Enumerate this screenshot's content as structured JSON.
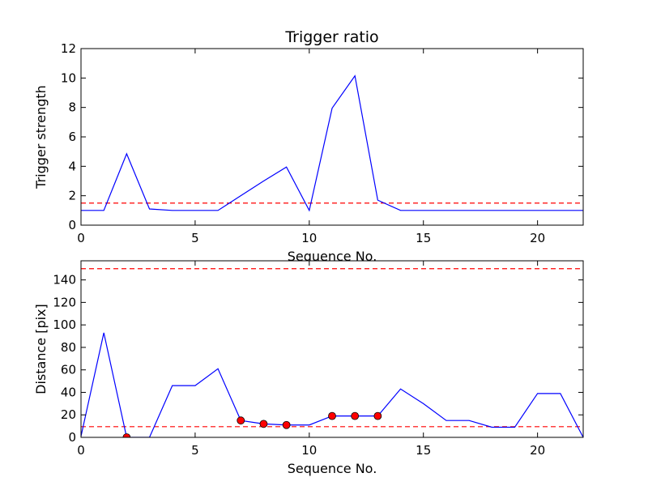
{
  "chart_data": [
    {
      "type": "line",
      "title": "Trigger ratio",
      "xlabel": "Sequence No.",
      "ylabel": "Trigger strength",
      "xlim": [
        0,
        22
      ],
      "ylim": [
        0,
        12
      ],
      "xticks": [
        0,
        5,
        10,
        15,
        20
      ],
      "yticks": [
        0,
        2,
        4,
        6,
        8,
        10,
        12
      ],
      "grid": false,
      "series": [
        {
          "style": "solid",
          "color": "#0000ff",
          "x": [
            0,
            1,
            2,
            3,
            4,
            5,
            6,
            7,
            8,
            9,
            10,
            11,
            12,
            13,
            14,
            15,
            16,
            17,
            18,
            19,
            20,
            21,
            22
          ],
          "y": [
            1.0,
            1.0,
            4.85,
            1.1,
            1.0,
            1.0,
            1.0,
            2.0,
            3.0,
            3.95,
            1.0,
            7.95,
            10.15,
            1.7,
            1.0,
            1.0,
            1.0,
            1.0,
            1.0,
            1.0,
            1.0,
            1.0,
            1.0
          ]
        }
      ],
      "hlines": [
        {
          "y": 1.5,
          "color": "#ff0000",
          "style": "dashed"
        }
      ]
    },
    {
      "type": "line",
      "title": "",
      "xlabel": "Sequence No.",
      "ylabel": "Distance [pix]",
      "xlim": [
        0,
        22
      ],
      "ylim": [
        0,
        157
      ],
      "xticks": [
        0,
        5,
        10,
        15,
        20
      ],
      "yticks": [
        0,
        20,
        40,
        60,
        80,
        100,
        120,
        140
      ],
      "grid": false,
      "series": [
        {
          "style": "solid",
          "color": "#0000ff",
          "x": [
            0,
            1,
            2,
            3,
            4,
            5,
            6,
            7,
            8,
            9,
            10,
            11,
            12,
            13,
            14,
            15,
            16,
            17,
            18,
            19,
            20,
            21,
            22
          ],
          "y": [
            1,
            93,
            0,
            0,
            46,
            46,
            61,
            15,
            12,
            11,
            11,
            19,
            19,
            19,
            43,
            30,
            15,
            15,
            9,
            9,
            39,
            39,
            0
          ]
        },
        {
          "style": "markers",
          "color": "#ff0000",
          "x": [
            2,
            7,
            8,
            9,
            11,
            12,
            13
          ],
          "y": [
            0,
            15,
            12,
            11,
            19,
            19,
            19
          ]
        }
      ],
      "hlines": [
        {
          "y": 150,
          "color": "#ff0000",
          "style": "dashed"
        },
        {
          "y": 9.5,
          "color": "#ff0000",
          "style": "dashed"
        }
      ]
    }
  ]
}
